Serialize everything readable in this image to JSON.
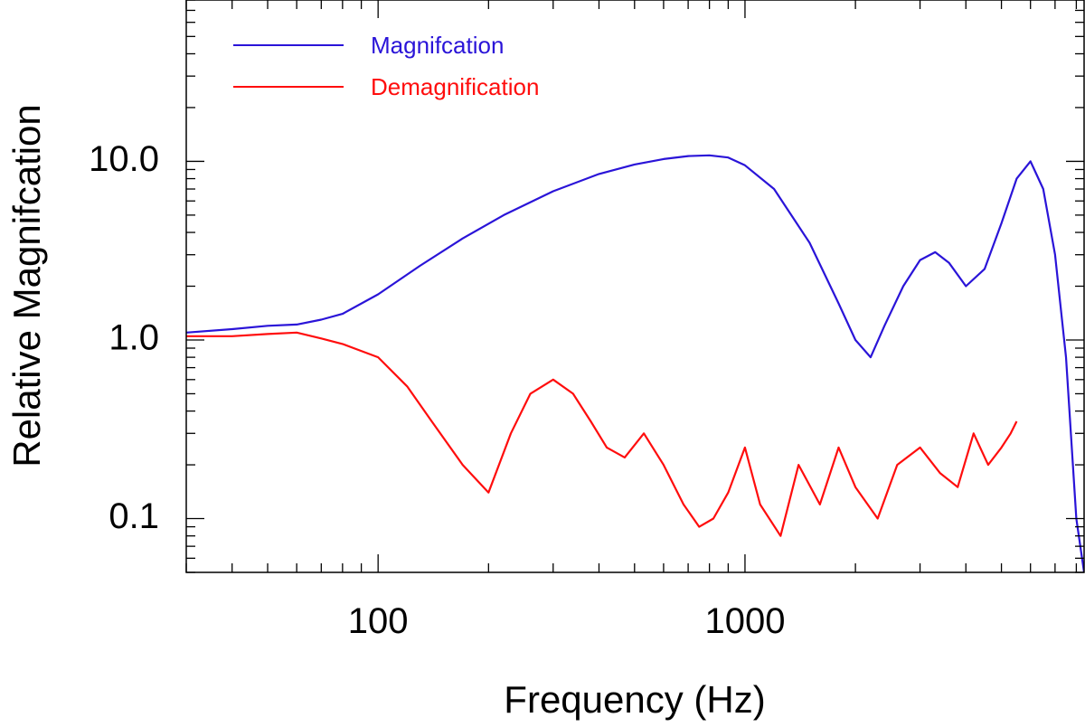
{
  "chart_data": {
    "type": "line",
    "title": "",
    "xlabel": "Frequency (Hz)",
    "ylabel": "Relative Magnifcation",
    "xscale": "log",
    "yscale": "log",
    "xlim": [
      30,
      8400
    ],
    "ylim": [
      0.05,
      80
    ],
    "x_ticks": [
      {
        "value": 100,
        "label": "100"
      },
      {
        "value": 1000,
        "label": "1000"
      }
    ],
    "y_ticks": [
      {
        "value": 0.1,
        "label": "0.1"
      },
      {
        "value": 1.0,
        "label": "1.0"
      },
      {
        "value": 10.0,
        "label": "10.0"
      }
    ],
    "legend_position": "top-left",
    "series": [
      {
        "name": "Magnifcation",
        "color": "#2a14d8",
        "x": [
          30,
          40,
          50,
          60,
          70,
          80,
          100,
          130,
          170,
          220,
          300,
          400,
          500,
          600,
          700,
          800,
          900,
          1000,
          1200,
          1500,
          1800,
          2000,
          2200,
          2400,
          2700,
          3000,
          3300,
          3600,
          4000,
          4500,
          5000,
          5500,
          6000,
          6500,
          7000,
          7500,
          8000,
          8400
        ],
        "values": [
          1.1,
          1.15,
          1.2,
          1.22,
          1.3,
          1.4,
          1.8,
          2.6,
          3.7,
          5.0,
          6.8,
          8.5,
          9.6,
          10.3,
          10.7,
          10.8,
          10.5,
          9.5,
          7.0,
          3.5,
          1.6,
          1.0,
          0.8,
          1.2,
          2.0,
          2.8,
          3.1,
          2.7,
          2.0,
          2.5,
          4.5,
          8.0,
          10.0,
          7.0,
          3.0,
          0.8,
          0.1,
          0.05
        ]
      },
      {
        "name": "Demagnification",
        "color": "#ff0d0d",
        "x": [
          30,
          40,
          50,
          60,
          70,
          80,
          100,
          120,
          140,
          170,
          200,
          230,
          260,
          300,
          340,
          380,
          420,
          470,
          530,
          600,
          680,
          750,
          820,
          900,
          1000,
          1100,
          1250,
          1400,
          1600,
          1800,
          2000,
          2300,
          2600,
          3000,
          3400,
          3800,
          4200,
          4600,
          5000,
          5300,
          5500
        ],
        "values": [
          1.05,
          1.05,
          1.08,
          1.1,
          1.02,
          0.95,
          0.8,
          0.55,
          0.35,
          0.2,
          0.14,
          0.3,
          0.5,
          0.6,
          0.5,
          0.35,
          0.25,
          0.22,
          0.3,
          0.2,
          0.12,
          0.09,
          0.1,
          0.14,
          0.25,
          0.12,
          0.08,
          0.2,
          0.12,
          0.25,
          0.15,
          0.1,
          0.2,
          0.25,
          0.18,
          0.15,
          0.3,
          0.2,
          0.25,
          0.3,
          0.35
        ]
      }
    ]
  }
}
